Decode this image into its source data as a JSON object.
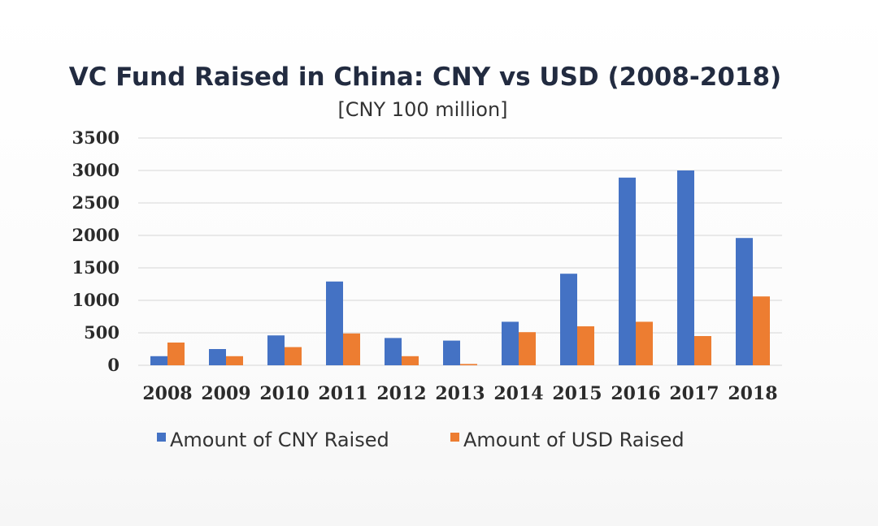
{
  "chart_data": {
    "type": "bar",
    "title": "VC Fund Raised in China: CNY vs USD (2008-2018)",
    "subtitle": "[CNY 100 million]",
    "categories": [
      "2008",
      "2009",
      "2010",
      "2011",
      "2012",
      "2013",
      "2014",
      "2015",
      "2016",
      "2017",
      "2018"
    ],
    "series": [
      {
        "name": "Amount of CNY Raised",
        "color": "#4472c4",
        "values": [
          140,
          250,
          460,
          1290,
          420,
          380,
          670,
          1410,
          2890,
          3000,
          1960
        ]
      },
      {
        "name": "Amount of USD Raised",
        "color": "#ed7d31",
        "values": [
          350,
          140,
          280,
          490,
          140,
          20,
          510,
          600,
          670,
          450,
          1060
        ]
      }
    ],
    "ylim": [
      0,
      3500
    ],
    "yticks": [
      "0",
      "500",
      "1000",
      "1500",
      "2000",
      "2500",
      "3000",
      "3500"
    ],
    "grid": true,
    "legend_position": "bottom"
  }
}
